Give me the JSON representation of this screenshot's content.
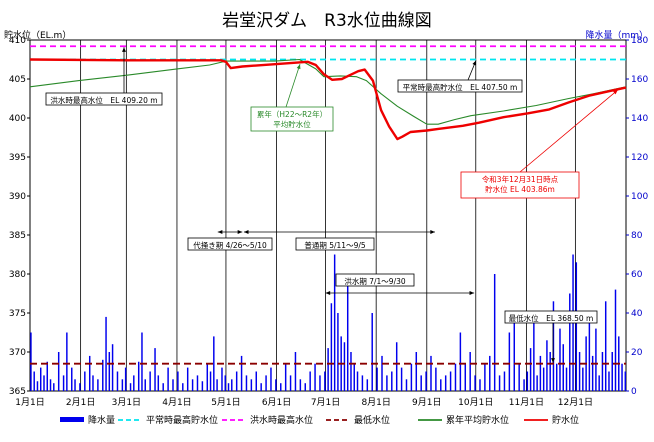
{
  "chart_data": {
    "type": "line",
    "title": "岩堂沢ダム　R3水位曲線図",
    "y_left_label": "貯水位（EL.m）",
    "y_right_label": "降水量（mm）",
    "y_left_range": [
      365,
      410
    ],
    "y_right_range": [
      0,
      180
    ],
    "y_left_ticks": [
      "365",
      "370",
      "375",
      "380",
      "385",
      "390",
      "395",
      "400",
      "405",
      "410"
    ],
    "y_right_ticks": [
      "0",
      "20",
      "40",
      "60",
      "80",
      "100",
      "120",
      "140",
      "160",
      "180"
    ],
    "x_ticks": [
      "1月1日",
      "2月1日",
      "3月1日",
      "4月1日",
      "5月1日",
      "6月1日",
      "7月1日",
      "8月1日",
      "9月1日",
      "10月1日",
      "11月1日",
      "12月1日"
    ],
    "x_tick_days": [
      0,
      31,
      59,
      90,
      120,
      151,
      181,
      212,
      243,
      273,
      304,
      334
    ],
    "x_end_day": 365,
    "grid": "vertical",
    "reference_lines": [
      {
        "name": "平常時最高貯水位",
        "value": 407.5,
        "color": "#00e5ee",
        "dash": "6,4"
      },
      {
        "name": "洪水時最高水位",
        "value": 409.2,
        "color": "#ff00ff",
        "dash": "6,4"
      },
      {
        "name": "最低水位",
        "value": 368.5,
        "color": "#8b0000",
        "dash": "7,4"
      }
    ],
    "series": [
      {
        "name": "累年平均貯水位",
        "color": "#2a8a2a",
        "points": [
          [
            0,
            404.0
          ],
          [
            30,
            404.8
          ],
          [
            60,
            405.5
          ],
          [
            90,
            406.3
          ],
          [
            110,
            406.8
          ],
          [
            120,
            407.3
          ],
          [
            130,
            407.3
          ],
          [
            150,
            407.3
          ],
          [
            165,
            407.5
          ],
          [
            175,
            406.3
          ],
          [
            180,
            405.3
          ],
          [
            190,
            405.4
          ],
          [
            200,
            405.3
          ],
          [
            206,
            404.8
          ],
          [
            215,
            403.1
          ],
          [
            225,
            401.5
          ],
          [
            235,
            400.2
          ],
          [
            243,
            399.2
          ],
          [
            250,
            399.2
          ],
          [
            260,
            399.8
          ],
          [
            270,
            400.3
          ],
          [
            290,
            400.9
          ],
          [
            310,
            401.6
          ],
          [
            330,
            402.5
          ],
          [
            345,
            403.1
          ],
          [
            365,
            404.0
          ]
        ]
      },
      {
        "name": "貯水位",
        "color": "#ee0000",
        "points": [
          [
            0,
            407.5
          ],
          [
            60,
            407.4
          ],
          [
            100,
            407.4
          ],
          [
            117,
            407.4
          ],
          [
            120,
            407.2
          ],
          [
            123,
            406.4
          ],
          [
            130,
            406.6
          ],
          [
            150,
            406.9
          ],
          [
            170,
            407.2
          ],
          [
            175,
            406.8
          ],
          [
            180,
            405.6
          ],
          [
            185,
            404.9
          ],
          [
            191,
            405.0
          ],
          [
            196,
            405.5
          ],
          [
            201,
            406.0
          ],
          [
            205,
            406.2
          ],
          [
            210,
            404.8
          ],
          [
            215,
            401.0
          ],
          [
            220,
            398.9
          ],
          [
            225,
            397.3
          ],
          [
            228,
            397.6
          ],
          [
            233,
            398.2
          ],
          [
            243,
            398.4
          ],
          [
            250,
            398.6
          ],
          [
            265,
            399.0
          ],
          [
            275,
            399.4
          ],
          [
            290,
            400.1
          ],
          [
            305,
            400.6
          ],
          [
            318,
            401.1
          ],
          [
            330,
            402.0
          ],
          [
            343,
            402.9
          ],
          [
            356,
            403.5
          ],
          [
            365,
            403.9
          ]
        ]
      }
    ],
    "rain_series": {
      "name": "降水量",
      "color": "#0000ee",
      "days": [
        0,
        2,
        4,
        6,
        8,
        10,
        12,
        14,
        17,
        20,
        22,
        25,
        27,
        30,
        33,
        36,
        38,
        41,
        44,
        46,
        48,
        50,
        53,
        56,
        58,
        61,
        63,
        66,
        68,
        70,
        73,
        76,
        78,
        81,
        84,
        87,
        90,
        93,
        96,
        99,
        102,
        105,
        108,
        110,
        112,
        114,
        117,
        119,
        121,
        123,
        126,
        129,
        132,
        135,
        138,
        141,
        144,
        147,
        150,
        153,
        156,
        159,
        162,
        165,
        168,
        171,
        174,
        177,
        180,
        182,
        184,
        186,
        188,
        190,
        192,
        194,
        196,
        198,
        200,
        203,
        206,
        209,
        212,
        215,
        218,
        221,
        224,
        227,
        230,
        233,
        236,
        239,
        242,
        245,
        248,
        251,
        254,
        257,
        260,
        263,
        266,
        269,
        272,
        275,
        278,
        281,
        284,
        287,
        290,
        293,
        296,
        299,
        302,
        304,
        306,
        308,
        310,
        312,
        314,
        316,
        318,
        320,
        322,
        324,
        326,
        328,
        330,
        332,
        334,
        336,
        338,
        340,
        342,
        344,
        346,
        348,
        350,
        352,
        354,
        356,
        358,
        360,
        362,
        364
      ],
      "values": [
        30,
        10,
        5,
        12,
        8,
        15,
        6,
        4,
        20,
        8,
        30,
        12,
        6,
        4,
        10,
        18,
        8,
        6,
        16,
        38,
        20,
        24,
        10,
        6,
        12,
        4,
        8,
        15,
        30,
        6,
        10,
        22,
        8,
        4,
        12,
        6,
        10,
        4,
        12,
        6,
        8,
        5,
        14,
        10,
        28,
        6,
        12,
        8,
        4,
        6,
        10,
        18,
        8,
        6,
        10,
        4,
        8,
        12,
        6,
        4,
        14,
        8,
        20,
        6,
        4,
        10,
        14,
        8,
        10,
        22,
        45,
        70,
        40,
        28,
        25,
        60,
        20,
        14,
        10,
        8,
        6,
        40,
        12,
        18,
        8,
        10,
        25,
        12,
        6,
        14,
        20,
        8,
        10,
        18,
        12,
        6,
        8,
        10,
        14,
        30,
        14,
        20,
        8,
        6,
        14,
        18,
        60,
        8,
        10,
        30,
        35,
        14,
        6,
        10,
        22,
        40,
        8,
        18,
        12,
        26,
        20,
        46,
        14,
        32,
        24,
        12,
        50,
        70,
        66,
        20,
        12,
        28,
        40,
        18,
        32,
        8,
        20,
        46,
        10,
        20,
        52,
        28,
        14,
        10
      ]
    },
    "annotations": [
      {
        "text": "洪水時最高水位　EL 409.20 m"
      },
      {
        "text": "平常時最高貯水位　EL 407.50 m"
      },
      {
        "text": "累年（H22～R2年）\n平均貯水位"
      },
      {
        "text": "令和3年12月31日時点\n貯水位 EL 403.86m"
      },
      {
        "text": "代掻き期 4/26～5/10"
      },
      {
        "text": "普通期 5/11～9/5"
      },
      {
        "text": "洪水期 7/1～9/30"
      },
      {
        "text": "最低水位　EL 368.50 m"
      }
    ],
    "legend": {
      "placement": "bottom",
      "items": [
        {
          "label": "降水量",
          "color": "#0000ee",
          "style": "bar"
        },
        {
          "label": "平常時最高貯水位",
          "color": "#00e5ee",
          "style": "dash"
        },
        {
          "label": "洪水時最高水位",
          "color": "#ff00ff",
          "style": "dash"
        },
        {
          "label": "最低水位",
          "color": "#8b0000",
          "style": "dash"
        },
        {
          "label": "累年平均貯水位",
          "color": "#2a8a2a",
          "style": "line"
        },
        {
          "label": "貯水位",
          "color": "#ee0000",
          "style": "line"
        }
      ]
    }
  }
}
